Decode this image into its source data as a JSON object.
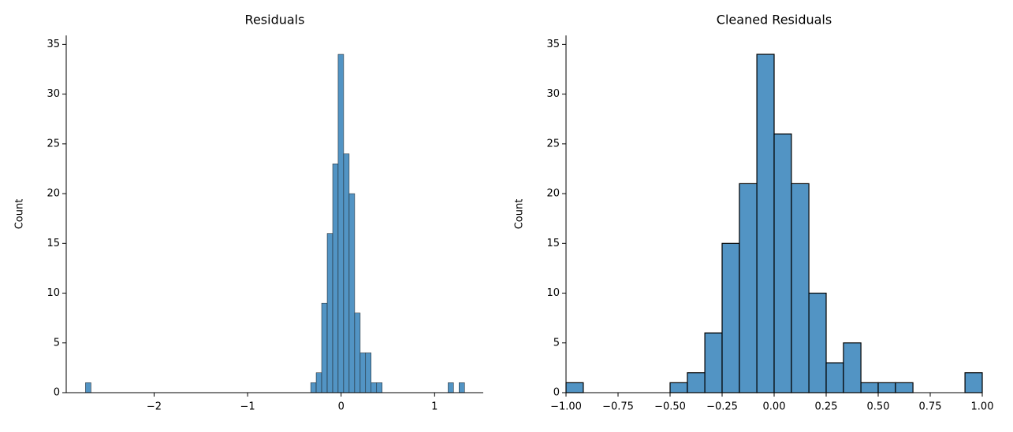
{
  "chart_data": [
    {
      "type": "histogram",
      "title": "Residuals",
      "ylabel": "Count",
      "color": "#5294c4",
      "edgecolor": "#1a1a1a",
      "bins": [
        -2.734,
        -2.675,
        -2.617,
        -2.558,
        -2.499,
        -2.44,
        -2.382,
        -2.323,
        -2.264,
        -2.205,
        -2.147,
        -2.088,
        -2.029,
        -1.97,
        -1.912,
        -1.853,
        -1.794,
        -1.735,
        -1.677,
        -1.618,
        -1.559,
        -1.5,
        -1.442,
        -1.383,
        -1.324,
        -1.265,
        -1.207,
        -1.148,
        -1.089,
        -1.03,
        -0.972,
        -0.913,
        -0.854,
        -0.795,
        -0.737,
        -0.678,
        -0.619,
        -0.56,
        -0.502,
        -0.443,
        -0.384,
        -0.325,
        -0.267,
        -0.208,
        -0.149,
        -0.09,
        -0.032,
        0.027,
        0.086,
        0.145,
        0.204,
        0.262,
        0.321,
        0.38,
        0.439,
        0.497,
        0.556,
        0.615,
        0.674,
        0.732,
        0.791,
        0.85,
        0.909,
        0.967,
        1.026,
        1.085,
        1.144,
        1.202,
        1.261,
        1.32
      ],
      "values": [
        1,
        0,
        0,
        0,
        0,
        0,
        0,
        0,
        0,
        0,
        0,
        0,
        0,
        0,
        0,
        0,
        0,
        0,
        0,
        0,
        0,
        0,
        0,
        0,
        0,
        0,
        0,
        0,
        0,
        0,
        0,
        0,
        0,
        0,
        0,
        0,
        0,
        0,
        0,
        0,
        0,
        1,
        2,
        9,
        16,
        23,
        34,
        24,
        20,
        8,
        4,
        4,
        1,
        1,
        0,
        0,
        0,
        0,
        0,
        0,
        0,
        0,
        0,
        0,
        0,
        0,
        1,
        0,
        1
      ],
      "xlim": [
        -2.94,
        1.52
      ],
      "ylim": [
        0,
        35.9
      ],
      "xticks": [
        {
          "value": -2,
          "label": "−2"
        },
        {
          "value": -1,
          "label": "−1"
        },
        0,
        1
      ],
      "yticks": [
        0,
        5,
        10,
        15,
        20,
        25,
        30,
        35
      ]
    },
    {
      "type": "histogram",
      "title": "Cleaned Residuals",
      "ylabel": "Count",
      "color": "#5294c4",
      "edgecolor": "#000000",
      "bins": [
        -1,
        -0.917,
        -0.833,
        -0.75,
        -0.667,
        -0.583,
        -0.5,
        -0.417,
        -0.333,
        -0.25,
        -0.167,
        -0.083,
        0,
        0.083,
        0.167,
        0.25,
        0.333,
        0.417,
        0.5,
        0.583,
        0.667,
        0.75,
        0.833,
        0.917,
        1
      ],
      "values": [
        1,
        0,
        0,
        0,
        0,
        0,
        1,
        2,
        6,
        15,
        21,
        34,
        26,
        21,
        10,
        3,
        5,
        1,
        1,
        1,
        0,
        0,
        0,
        2
      ],
      "xlim": [
        -1,
        1
      ],
      "ylim": [
        0,
        35.9
      ],
      "xticks": [
        {
          "value": -1,
          "label": "−1.00"
        },
        {
          "value": -0.75,
          "label": "−0.75"
        },
        {
          "value": -0.5,
          "label": "−0.50"
        },
        {
          "value": -0.25,
          "label": "−0.25"
        },
        {
          "value": 0,
          "label": "0.00"
        },
        {
          "value": 0.25,
          "label": "0.25"
        },
        {
          "value": 0.5,
          "label": "0.50"
        },
        {
          "value": 0.75,
          "label": "0.75"
        },
        {
          "value": 1,
          "label": "1.00"
        }
      ],
      "yticks": [
        0,
        5,
        10,
        15,
        20,
        25,
        30,
        35
      ]
    }
  ]
}
